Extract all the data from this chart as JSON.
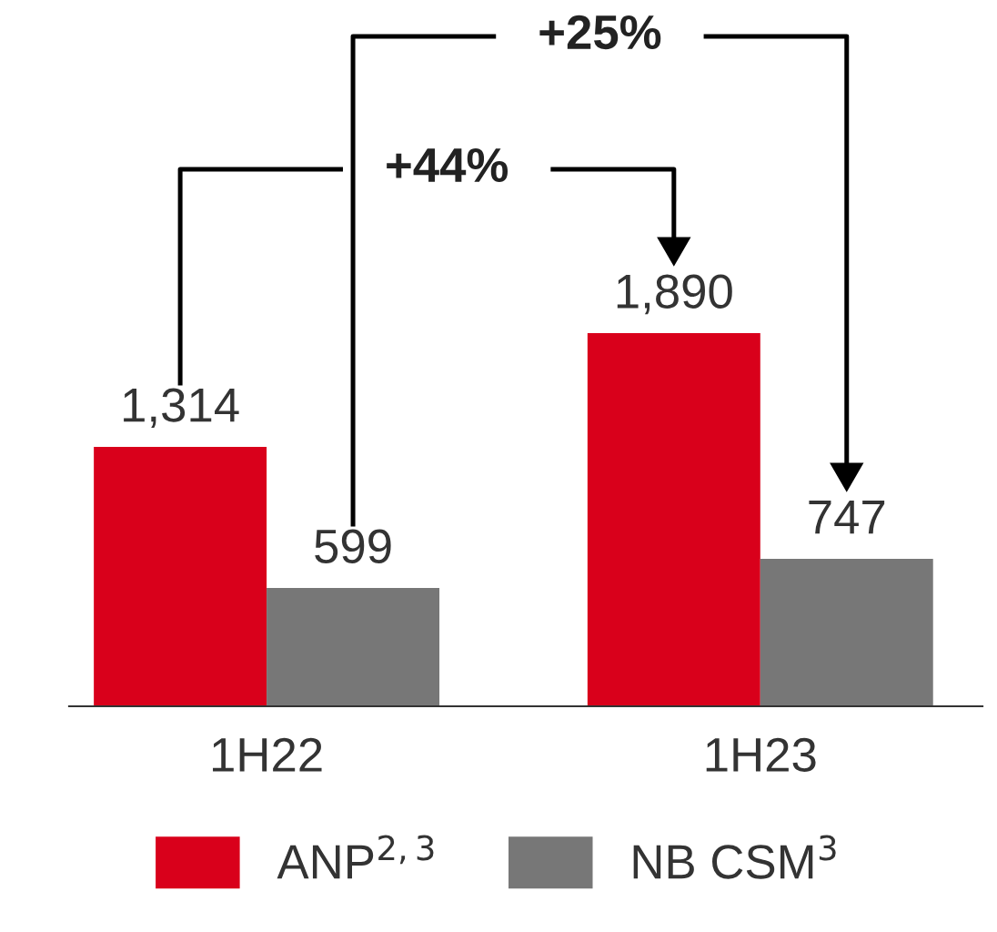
{
  "chart_data": {
    "type": "bar",
    "categories": [
      "1H22",
      "1H23"
    ],
    "series": [
      {
        "name": "ANP$^{2,3}$",
        "color": "#d9001b",
        "values": [
          1314,
          1890
        ],
        "value_labels": [
          "1,314",
          "1,890"
        ]
      },
      {
        "name": "NB CSM$^{3}$",
        "color": "#777777",
        "values": [
          599,
          747
        ],
        "value_labels": [
          "599",
          "747"
        ]
      }
    ],
    "annotations": [
      "+44%",
      "+25%"
    ],
    "legend": "bottom",
    "grid": false
  }
}
